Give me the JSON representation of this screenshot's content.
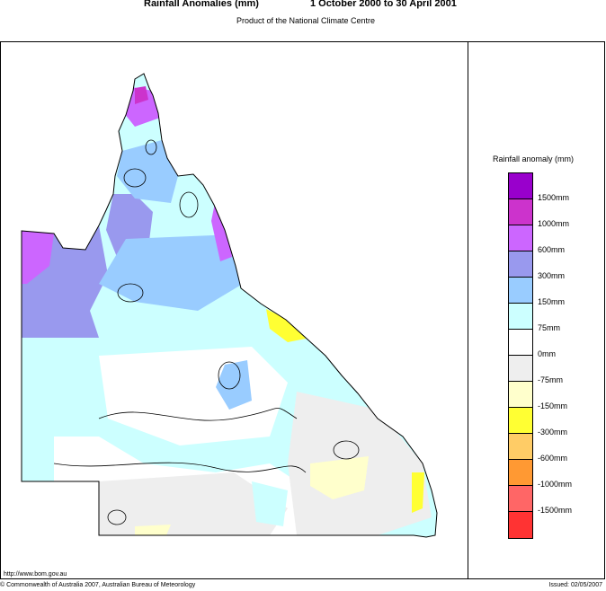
{
  "header": {
    "title": "Rainfall Anomalies (mm)",
    "period": "1 October 2000 to 30 April 2001",
    "subtitle": "Product of the National Climate Centre"
  },
  "legend": {
    "title": "Rainfall anomaly (mm)",
    "levels": [
      {
        "label": "1500mm",
        "color": "#9900cc"
      },
      {
        "label": "1000mm",
        "color": "#cc33cc"
      },
      {
        "label": "600mm",
        "color": "#cc66ff"
      },
      {
        "label": "300mm",
        "color": "#9999ee"
      },
      {
        "label": "150mm",
        "color": "#99ccff"
      },
      {
        "label": "75mm",
        "color": "#ccffff"
      },
      {
        "label": "0mm",
        "color": "#ffffff"
      },
      {
        "label": "-75mm",
        "color": "#eeeeee"
      },
      {
        "label": "-150mm",
        "color": "#ffffcc"
      },
      {
        "label": "-300mm",
        "color": "#ffff33"
      },
      {
        "label": "-600mm",
        "color": "#ffcc66"
      },
      {
        "label": "-1000mm",
        "color": "#ff9933"
      },
      {
        "label": "-1500mm",
        "color": "#ff6666"
      },
      {
        "label": "",
        "color": "#ff3333"
      }
    ]
  },
  "footer": {
    "url": "http://www.bom.gov.au",
    "copyright": "© Commonwealth of Australia 2007, Australian Bureau of Meteorology",
    "issued": "Issued: 02/05/2007"
  }
}
